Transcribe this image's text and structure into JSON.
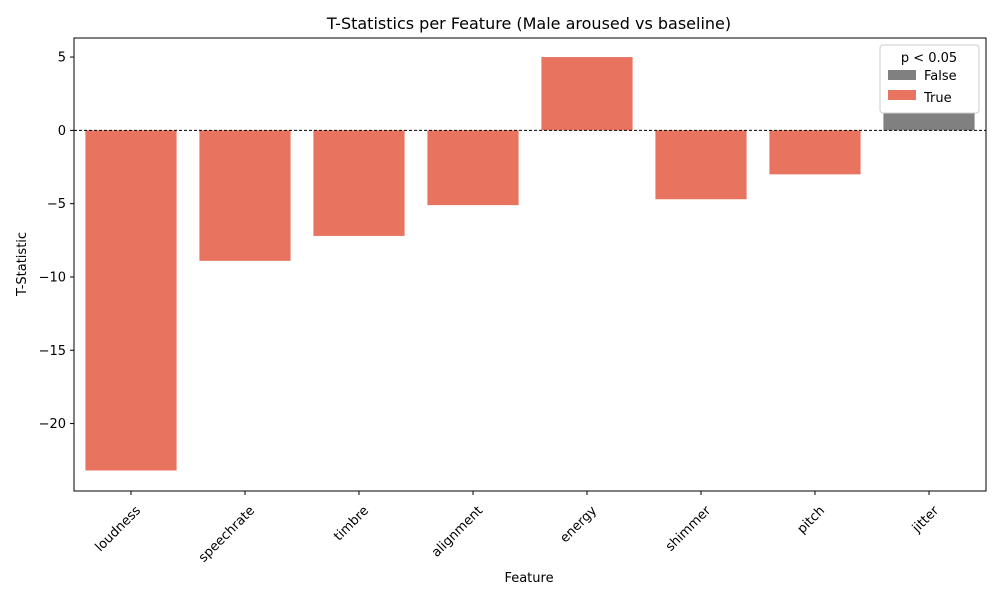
{
  "chart_data": {
    "type": "bar",
    "title": "T-Statistics per Feature (Male aroused vs baseline)",
    "xlabel": "Feature",
    "ylabel": "T-Statistic",
    "categories": [
      "loudness",
      "speechrate",
      "timbre",
      "alignment",
      "energy",
      "shimmer",
      "pitch",
      "jitter"
    ],
    "values": [
      -23.2,
      -8.9,
      -7.2,
      -5.1,
      5.0,
      -4.7,
      -3.0,
      1.2
    ],
    "significant": [
      true,
      true,
      true,
      true,
      true,
      true,
      true,
      false
    ],
    "ylim": [
      -24.6,
      6.3
    ],
    "yticks": [
      5,
      0,
      -5,
      -10,
      -15,
      -20
    ],
    "ytick_labels": [
      "5",
      "0",
      "−5",
      "−10",
      "−15",
      "−20"
    ],
    "grid": false,
    "zero_line": true,
    "legend": {
      "title": "p < 0.05",
      "placement": "top-right",
      "entries": [
        {
          "label": "False",
          "color": "#808080"
        },
        {
          "label": "True",
          "color": "#e8735f"
        }
      ]
    },
    "colors": {
      "true": "#e8735f",
      "false": "#808080"
    }
  }
}
